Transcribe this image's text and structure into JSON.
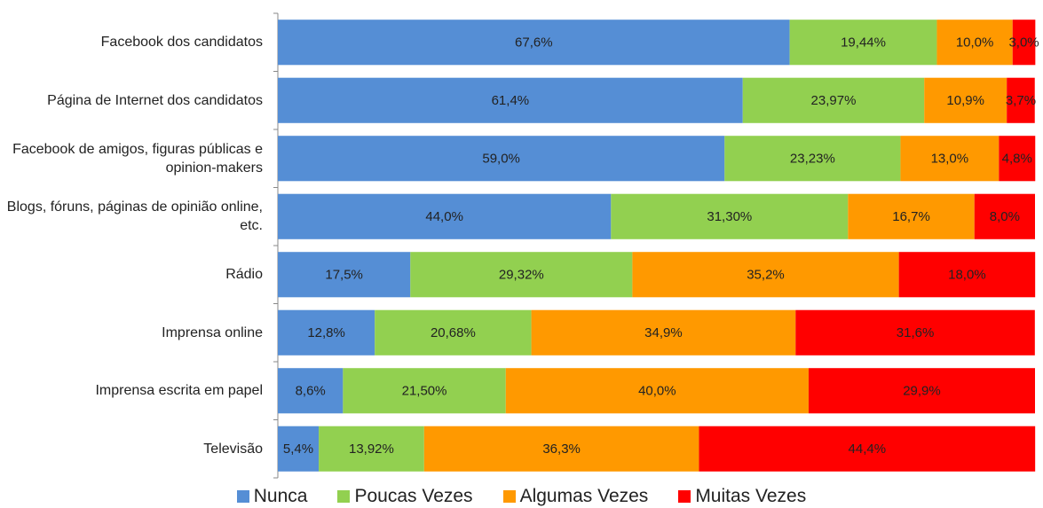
{
  "chart_data": {
    "type": "stacked-barh",
    "categories": [
      "Facebook dos candidatos",
      "Página de Internet dos candidatos",
      "Facebook de amigos, figuras públicas e opinion-makers",
      "Blogs, fóruns, páginas de opinião online, etc.",
      "Rádio",
      "Imprensa online",
      "Imprensa escrita em papel",
      "Televisão"
    ],
    "xlim": [
      0,
      100
    ],
    "legend": "bottom",
    "series": [
      {
        "name": "Nunca",
        "color": "#558ed5",
        "values": [
          67.6,
          61.4,
          59.0,
          44.0,
          17.5,
          12.8,
          8.6,
          5.4
        ],
        "value_labels": [
          "67,6%",
          "61,4%",
          "59,0%",
          "44,0%",
          "17,5%",
          "12,8%",
          "8,6%",
          "5,4%"
        ]
      },
      {
        "name": "Poucas Vezes",
        "color": "#92d050",
        "values": [
          19.44,
          23.97,
          23.23,
          31.3,
          29.32,
          20.68,
          21.5,
          13.92
        ],
        "value_labels": [
          "19,44%",
          "23,97%",
          "23,23%",
          "31,30%",
          "29,32%",
          "20,68%",
          "21,50%",
          "13,92%"
        ]
      },
      {
        "name": "Algumas Vezes",
        "color": "#ff9900",
        "values": [
          10.0,
          10.9,
          13.0,
          16.7,
          35.2,
          34.9,
          40.0,
          36.3
        ],
        "value_labels": [
          "10,0%",
          "10,9%",
          "13,0%",
          "16,7%",
          "35,2%",
          "34,9%",
          "40,0%",
          "36,3%"
        ]
      },
      {
        "name": "Muitas Vezes",
        "color": "#ff0000",
        "values": [
          3.0,
          3.7,
          4.8,
          8.0,
          18.0,
          31.6,
          29.9,
          44.4
        ],
        "value_labels": [
          "3,0%",
          "3,7%",
          "4,8%",
          "8,0%",
          "18,0%",
          "31,6%",
          "29,9%",
          "44,4%"
        ]
      }
    ]
  }
}
